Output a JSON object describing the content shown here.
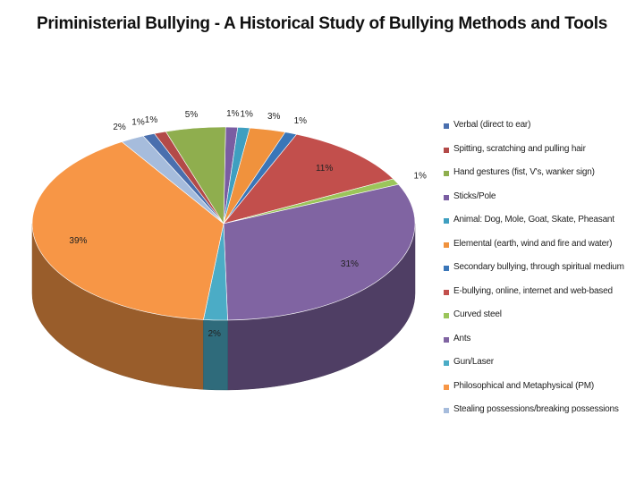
{
  "title": "Priministerial Bullying - A Historical Study of Bullying Methods and Tools",
  "chart_data": {
    "type": "pie",
    "style": "3d",
    "legend_position": "right",
    "slices": [
      {
        "label": "Verbal (direct to ear)",
        "value": 1,
        "display": "1%",
        "color": "#4a6fae"
      },
      {
        "label": "Spitting, scratching and pulling hair",
        "value": 1,
        "display": "1%",
        "color": "#b34a48"
      },
      {
        "label": "Hand gestures (fist, V's, wanker sign)",
        "value": 5,
        "display": "5%",
        "color": "#8fae4e"
      },
      {
        "label": "Sticks/Pole",
        "value": 1,
        "display": "1%",
        "color": "#7a5da2"
      },
      {
        "label": "Animal: Dog, Mole, Goat, Skate, Pheasant",
        "value": 1,
        "display": "1%",
        "color": "#3f9fc0"
      },
      {
        "label": "Elemental (earth, wind and fire and water)",
        "value": 3,
        "display": "3%",
        "color": "#f0923d"
      },
      {
        "label": "Secondary bullying, through spiritual medium",
        "value": 1,
        "display": "1%",
        "color": "#3a76b8"
      },
      {
        "label": "E-bullying, online, internet and web-based",
        "value": 11,
        "display": "11%",
        "color": "#c24f4c"
      },
      {
        "label": "Curved steel",
        "value": 1,
        "display": "1%",
        "color": "#9bc55a"
      },
      {
        "label": "Ants",
        "value": 31,
        "display": "31%",
        "color": "#8064a2"
      },
      {
        "label": "Gun/Laser",
        "value": 2,
        "display": "2%",
        "color": "#4bacc6"
      },
      {
        "label": "Philosophical and Metaphysical (PM)",
        "value": 39,
        "display": "39%",
        "color": "#f79646"
      },
      {
        "label": "Stealing possessions/breaking possessions",
        "value": 2,
        "display": "2%",
        "color": "#a6bcdc"
      }
    ],
    "draw_order": [
      3,
      4,
      5,
      6,
      7,
      8,
      9,
      10,
      11,
      12,
      0,
      1,
      2
    ]
  }
}
